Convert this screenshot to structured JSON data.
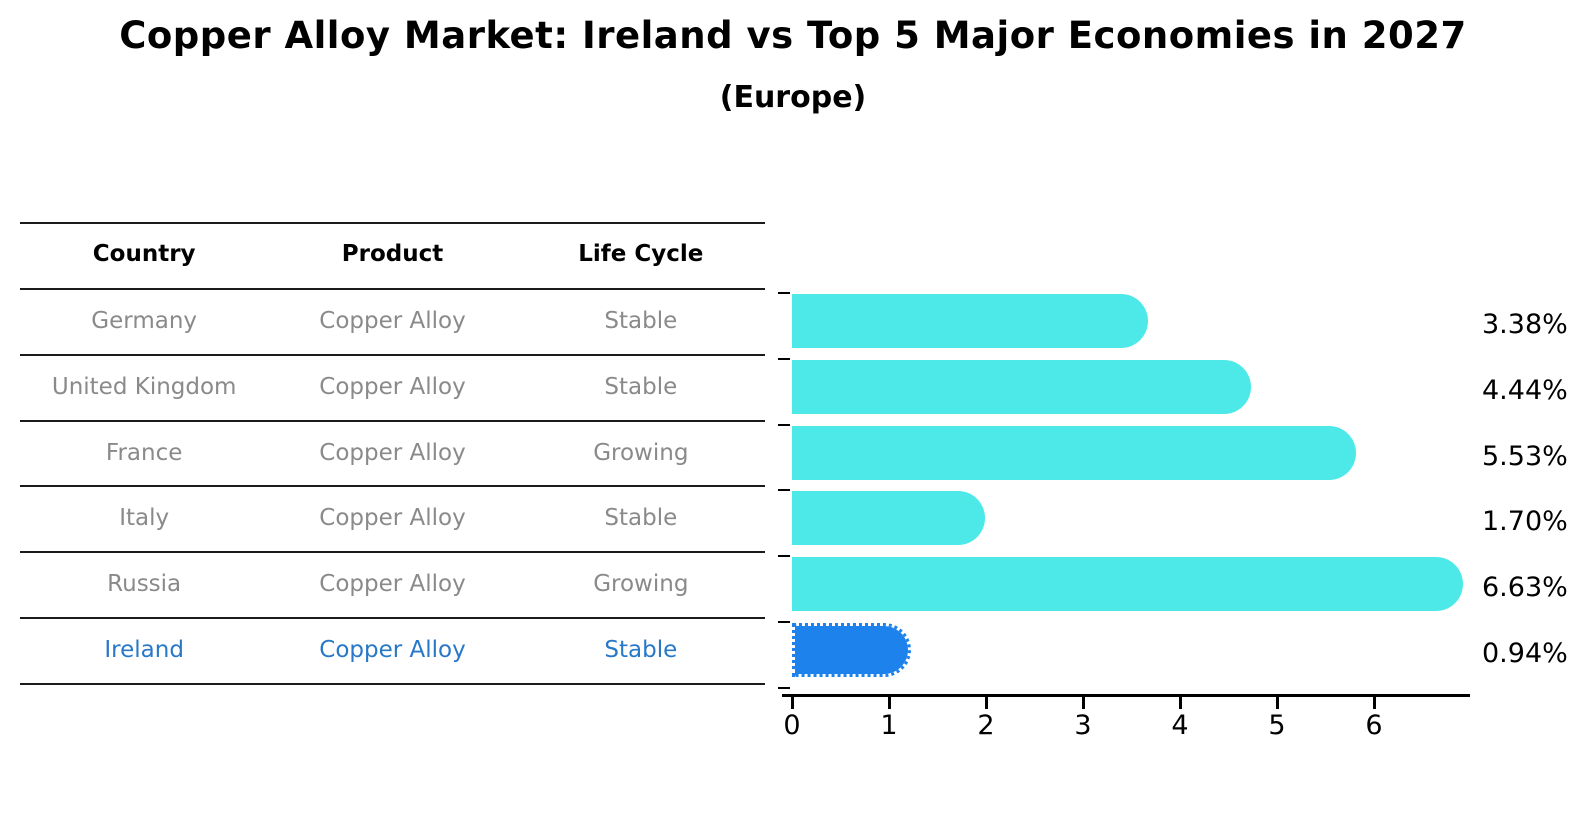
{
  "title": "Copper Alloy Market: Ireland vs Top 5 Major Economies in 2027",
  "subtitle": "(Europe)",
  "table": {
    "headers": [
      "Country",
      "Product",
      "Life Cycle"
    ]
  },
  "chart_data": {
    "type": "bar",
    "orientation": "horizontal",
    "title": "Copper Alloy Market: Ireland vs Top 5 Major Economies in 2027",
    "subtitle": "(Europe)",
    "categories": [
      "Germany",
      "United Kingdom",
      "France",
      "Italy",
      "Russia",
      "Ireland"
    ],
    "values": [
      3.38,
      4.44,
      5.53,
      1.7,
      6.63,
      0.94
    ],
    "value_labels": [
      "3.38%",
      "4.44%",
      "5.53%",
      "1.70%",
      "6.63%",
      "0.94%"
    ],
    "rows": [
      {
        "country": "Germany",
        "product": "Copper Alloy",
        "life_cycle": "Stable",
        "value": 3.38,
        "label": "3.38%",
        "highlight": false
      },
      {
        "country": "United Kingdom",
        "product": "Copper Alloy",
        "life_cycle": "Stable",
        "value": 4.44,
        "label": "4.44%",
        "highlight": false
      },
      {
        "country": "France",
        "product": "Copper Alloy",
        "life_cycle": "Growing",
        "value": 5.53,
        "label": "5.53%",
        "highlight": false
      },
      {
        "country": "Italy",
        "product": "Copper Alloy",
        "life_cycle": "Stable",
        "value": 1.7,
        "label": "1.70%",
        "highlight": false
      },
      {
        "country": "Russia",
        "product": "Copper Alloy",
        "life_cycle": "Growing",
        "value": 6.63,
        "label": "6.63%",
        "highlight": false
      },
      {
        "country": "Ireland",
        "product": "Copper Alloy",
        "life_cycle": "Stable",
        "value": 0.94,
        "label": "0.94%",
        "highlight": true
      }
    ],
    "x_ticks": [
      0,
      1,
      2,
      3,
      4,
      5,
      6
    ],
    "xlim": [
      0,
      7
    ],
    "grid": false,
    "legend": "none"
  },
  "colors": {
    "bar": "#4de8e8",
    "highlight_bar": "#1e82ec",
    "highlight_text": "#2878c8",
    "row_text": "#8a8a8a",
    "heading_text": "#000000"
  }
}
